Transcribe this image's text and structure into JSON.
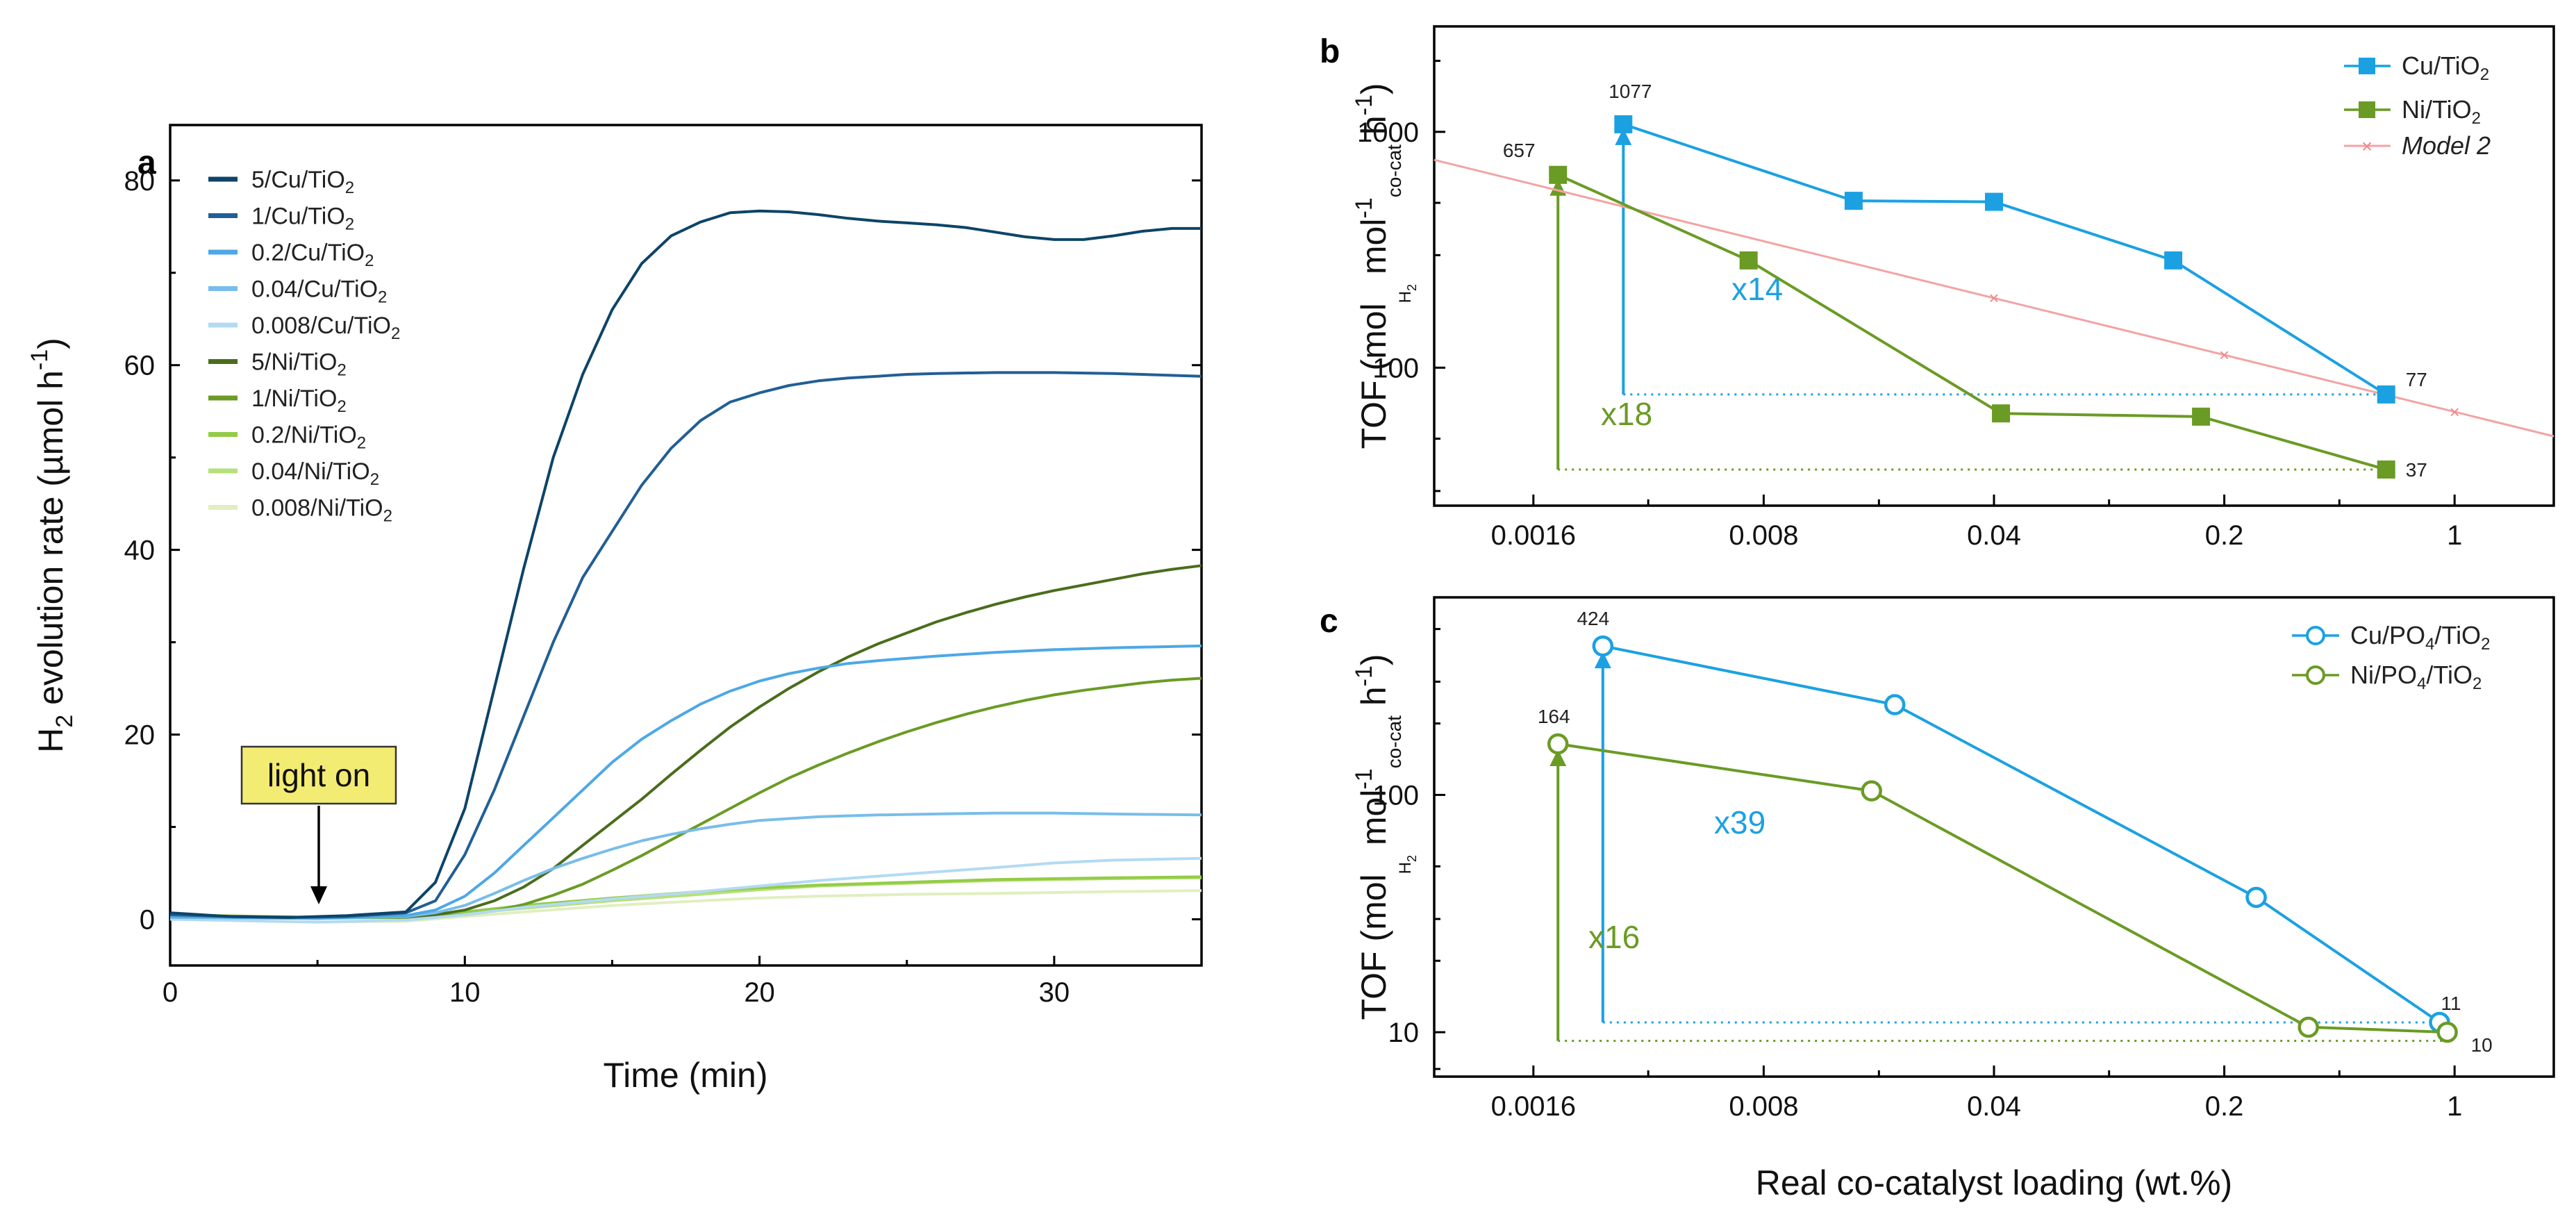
{
  "chart_data": [
    {
      "panel": "a",
      "type": "line",
      "xlabel": "Time (min)",
      "ylabel": "H2 evolution rate (µmol h-1)",
      "xlim": [
        0,
        35
      ],
      "ylim": [
        -5,
        86
      ],
      "xticks": [
        "0",
        "10",
        "20",
        "30"
      ],
      "yticks": [
        "0",
        "20",
        "40",
        "60",
        "80"
      ],
      "annotation": "light on",
      "annotation_x": 5,
      "series": [
        {
          "name": "5/Cu/TiO2",
          "color": "#0d4468",
          "x": [
            0,
            2,
            4,
            6,
            8,
            9,
            10,
            11,
            12,
            13,
            14,
            15,
            16,
            17,
            18,
            19,
            20,
            21,
            22,
            23,
            24,
            25,
            26,
            27,
            28,
            29,
            30,
            31,
            32,
            33,
            34,
            35
          ],
          "y": [
            0.7,
            0.3,
            0.2,
            0.4,
            0.8,
            4,
            12,
            25,
            38,
            50,
            59,
            66,
            71,
            74,
            75.5,
            76.5,
            76.7,
            76.6,
            76.3,
            75.9,
            75.6,
            75.4,
            75.2,
            74.9,
            74.4,
            73.9,
            73.6,
            73.6,
            74.0,
            74.5,
            74.8,
            74.8
          ]
        },
        {
          "name": "1/Cu/TiO2",
          "color": "#215f95",
          "x": [
            0,
            2,
            4,
            6,
            8,
            9,
            10,
            11,
            12,
            13,
            14,
            15,
            16,
            17,
            18,
            19,
            20,
            21,
            22,
            23,
            24,
            25,
            26,
            28,
            30,
            32,
            35
          ],
          "y": [
            0.5,
            0.3,
            0.2,
            0.3,
            0.7,
            2,
            7,
            14,
            22,
            30,
            37,
            42,
            47,
            51,
            54,
            56,
            57,
            57.8,
            58.3,
            58.6,
            58.8,
            59,
            59.1,
            59.2,
            59.2,
            59.1,
            58.8
          ]
        },
        {
          "name": "0.2/Cu/TiO2",
          "color": "#4da8e6",
          "x": [
            0,
            5,
            8,
            9,
            10,
            11,
            12,
            13,
            14,
            15,
            16,
            17,
            18,
            19,
            20,
            21,
            22,
            23,
            24,
            26,
            28,
            30,
            32,
            35
          ],
          "y": [
            0.3,
            0.1,
            0.4,
            1,
            2.5,
            5,
            8,
            11,
            14,
            17,
            19.5,
            21.5,
            23.3,
            24.7,
            25.8,
            26.6,
            27.2,
            27.7,
            28,
            28.5,
            28.9,
            29.2,
            29.4,
            29.6
          ]
        },
        {
          "name": "0.04/Cu/TiO2",
          "color": "#78bde9",
          "x": [
            0,
            5,
            8,
            9,
            10,
            11,
            12,
            13,
            14,
            15,
            16,
            17,
            18,
            19,
            20,
            22,
            24,
            26,
            28,
            30,
            32,
            35
          ],
          "y": [
            0.2,
            0.1,
            0.3,
            0.7,
            1.5,
            2.8,
            4.2,
            5.5,
            6.6,
            7.6,
            8.5,
            9.2,
            9.8,
            10.3,
            10.7,
            11.1,
            11.3,
            11.4,
            11.5,
            11.5,
            11.4,
            11.3
          ]
        },
        {
          "name": "0.008/Cu/TiO2",
          "color": "#b3daf3",
          "x": [
            0,
            5,
            8,
            10,
            12,
            15,
            18,
            20,
            22,
            25,
            28,
            30,
            32,
            35
          ],
          "y": [
            0,
            -0.3,
            -0.1,
            0.5,
            1.3,
            2.2,
            3,
            3.6,
            4.2,
            4.9,
            5.6,
            6.1,
            6.4,
            6.6
          ]
        },
        {
          "name": "5/Ni/TiO2",
          "color": "#4a6d1c",
          "x": [
            0,
            5,
            8,
            9,
            10,
            11,
            12,
            13,
            14,
            15,
            16,
            17,
            18,
            19,
            20,
            21,
            22,
            23,
            24,
            25,
            26,
            27,
            28,
            29,
            30,
            31,
            32,
            33,
            34,
            35
          ],
          "y": [
            0.4,
            0.2,
            0.3,
            0.5,
            1,
            2,
            3.5,
            5.5,
            8,
            10.5,
            13,
            15.7,
            18.3,
            20.8,
            23,
            25,
            26.8,
            28.4,
            29.8,
            31,
            32.2,
            33.2,
            34.1,
            34.9,
            35.6,
            36.2,
            36.8,
            37.4,
            37.9,
            38.3
          ]
        },
        {
          "name": "1/Ni/TiO2",
          "color": "#6a9b24",
          "x": [
            0,
            5,
            8,
            10,
            11,
            12,
            13,
            14,
            15,
            16,
            17,
            18,
            19,
            20,
            21,
            22,
            23,
            24,
            25,
            26,
            27,
            28,
            29,
            30,
            31,
            32,
            33,
            34,
            35
          ],
          "y": [
            0.4,
            0.2,
            0.2,
            0.5,
            0.9,
            1.6,
            2.6,
            3.8,
            5.3,
            6.9,
            8.6,
            10.3,
            12,
            13.7,
            15.3,
            16.7,
            18,
            19.2,
            20.3,
            21.3,
            22.2,
            23,
            23.7,
            24.3,
            24.8,
            25.2,
            25.6,
            25.9,
            26.1
          ]
        },
        {
          "name": "0.2/Ni/TiO2",
          "color": "#93cc45",
          "x": [
            0,
            5,
            8,
            10,
            12,
            15,
            18,
            20,
            22,
            25,
            28,
            30,
            32,
            35
          ],
          "y": [
            0.5,
            0.2,
            0.3,
            0.8,
            1.5,
            2.3,
            3,
            3.4,
            3.7,
            4,
            4.3,
            4.4,
            4.5,
            4.6
          ]
        },
        {
          "name": "0.04/Ni/TiO2",
          "color": "#b6e07a",
          "x": [
            0,
            5,
            8,
            10,
            12,
            15,
            18,
            20,
            22,
            25,
            28,
            30,
            32,
            35
          ],
          "y": [
            0.3,
            0.1,
            0.2,
            0.6,
            1.2,
            2,
            2.7,
            3.2,
            3.6,
            3.9,
            4.2,
            4.3,
            4.4,
            4.5
          ]
        },
        {
          "name": "0.008/Ni/TiO2",
          "color": "#e0efbf",
          "x": [
            0,
            5,
            8,
            10,
            12,
            15,
            18,
            20,
            22,
            25,
            28,
            30,
            32,
            35
          ],
          "y": [
            0,
            -0.3,
            -0.2,
            0.3,
            0.8,
            1.5,
            2,
            2.3,
            2.5,
            2.7,
            2.8,
            2.9,
            3,
            3.1
          ]
        }
      ]
    },
    {
      "panel": "b",
      "type": "scatter",
      "xscale": "log",
      "yscale": "log",
      "xlabel": "",
      "ylabel": "TOF (mol H2 mol-1 co-cat h-1)",
      "xlim": [
        0.0008,
        2
      ],
      "ylim": [
        26,
        2800
      ],
      "xticks": [
        "0.0016",
        "0.008",
        "0.04",
        "0.2",
        "1"
      ],
      "yticks": [
        "100",
        "1000"
      ],
      "series": [
        {
          "name": "Cu/TiO2",
          "color": "#1ba1e2",
          "marker": "square",
          "x": [
            0.003,
            0.015,
            0.04,
            0.14,
            0.62
          ],
          "y": [
            1077,
            510,
            505,
            285,
            77
          ]
        },
        {
          "name": "Ni/TiO2",
          "color": "#6a9b24",
          "marker": "square",
          "x": [
            0.0019,
            0.0072,
            0.042,
            0.17,
            0.62
          ],
          "y": [
            657,
            285,
            64,
            62,
            37
          ]
        },
        {
          "name": "Model 2",
          "color": "#f4a3a3",
          "marker": "x",
          "x": [
            0.0006,
            1
          ],
          "y": [
            840,
            65
          ]
        }
      ],
      "labels": [
        "1077",
        "657",
        "77",
        "37"
      ],
      "multipliers": [
        "x14",
        "x18"
      ]
    },
    {
      "panel": "c",
      "type": "scatter",
      "xscale": "log",
      "yscale": "log",
      "xlabel": "Real co-catalyst loading (wt.%)",
      "ylabel": "TOF (mol H2 mol-1 co-cat h-1)",
      "xlim": [
        0.0008,
        2
      ],
      "ylim": [
        6.5,
        680
      ],
      "xticks": [
        "0.0016",
        "0.008",
        "0.04",
        "0.2",
        "1"
      ],
      "yticks": [
        "10",
        "100"
      ],
      "series": [
        {
          "name": "Cu/PO4/TiO2",
          "color": "#1ba1e2",
          "marker": "circle-open",
          "x": [
            0.0026,
            0.02,
            0.25,
            0.9
          ],
          "y": [
            424,
            240,
            37,
            11
          ]
        },
        {
          "name": "Ni/PO4/TiO2",
          "color": "#6a9b24",
          "marker": "circle-open",
          "x": [
            0.0019,
            0.017,
            0.36,
            0.95
          ],
          "y": [
            164,
            104,
            10.5,
            10
          ]
        }
      ],
      "labels": [
        "424",
        "164",
        "11",
        "10"
      ],
      "multipliers": [
        "x39",
        "x16"
      ]
    }
  ],
  "panels": {
    "a": {
      "label": "a",
      "legend": [
        "5/Cu/TiO",
        "1/Cu/TiO",
        "0.2/Cu/TiO",
        "0.04/Cu/TiO",
        "0.008/Cu/TiO",
        "5/Ni/TiO",
        "1/Ni/TiO",
        "0.2/Ni/TiO",
        "0.04/Ni/TiO",
        "0.008/Ni/TiO"
      ],
      "sub": "2"
    },
    "b": {
      "label": "b",
      "legend": [
        "Cu/TiO",
        "Ni/TiO",
        "Model 2"
      ]
    },
    "c": {
      "label": "c",
      "legend": [
        "Cu/PO",
        "Ni/PO"
      ]
    }
  },
  "text": {
    "a_ylabel_pre": "H",
    "a_ylabel_sub": "2",
    "a_ylabel_mid": " evolution rate (µmol h",
    "a_ylabel_sup": "-1",
    "a_ylabel_end": ")",
    "a_xlabel": "Time (min)",
    "light_on": "light on",
    "tof_pre": "TOF (mol",
    "tof_h2": "H",
    "tof_h2_sub": "2",
    "tof_mol": " mol",
    "tof_sup1": "-1",
    "tof_cocat": "co-cat",
    "tof_h": " h",
    "tof_sup2": "-1",
    "tof_end": ")",
    "c_xlabel": "Real co-catalyst loading (wt.%)",
    "b_lbl_1077": "1077",
    "b_lbl_657": "657",
    "b_lbl_77": "77",
    "b_lbl_37": "37",
    "b_x14": "x14",
    "b_x18": "x18",
    "c_lbl_424": "424",
    "c_lbl_164": "164",
    "c_lbl_11": "11",
    "c_lbl_10": "10",
    "c_x39": "x39",
    "c_x16": "x16",
    "leg_b1": "Cu/TiO",
    "leg_b2": "Ni/TiO",
    "leg_b3": "Model 2",
    "leg_c1_a": "Cu/PO",
    "leg_c1_b": "/TiO",
    "leg_c2_a": "Ni/PO",
    "leg_c2_b": "/TiO",
    "sub2": "2",
    "sub4": "4"
  }
}
